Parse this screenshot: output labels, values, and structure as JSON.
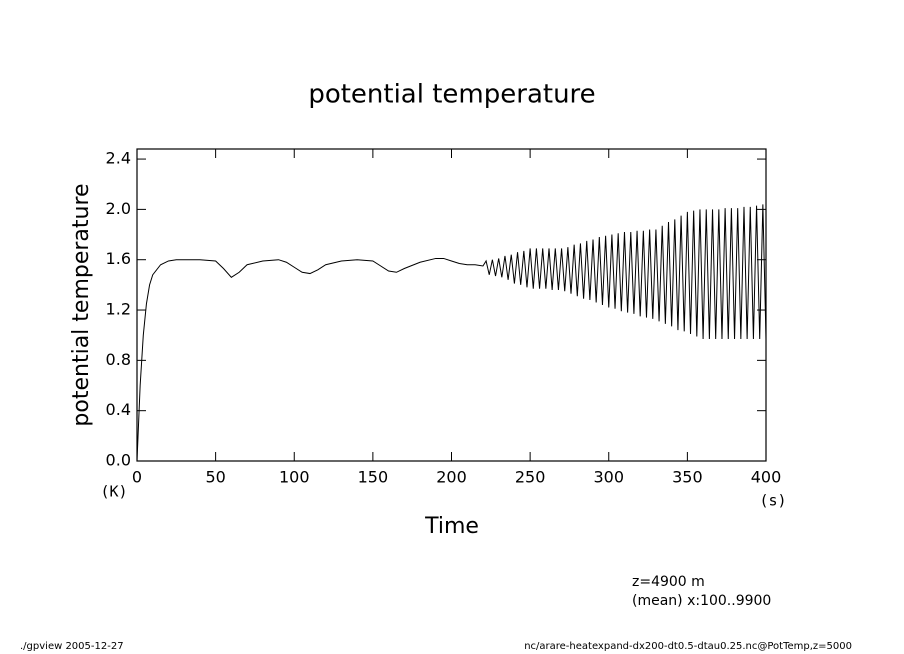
{
  "chart_data": {
    "type": "line",
    "title": "potential temperature",
    "y_label": "potential temperature",
    "x_label": "Time",
    "y_unit": "(K)",
    "x_unit": "(s)",
    "annotations": [
      "z=4900  m",
      "(mean) x:100..9900"
    ],
    "footer_left": "./gpview  2005-12-27",
    "footer_right": "nc/arare-heatexpand-dx200-dt0.5-dtau0.25.nc@PotTemp,z=5000",
    "color": "#000000",
    "xlim": [
      0,
      400
    ],
    "xticks": [
      0,
      50,
      100,
      150,
      200,
      250,
      300,
      350,
      400
    ],
    "ylim": [
      0,
      2.48
    ],
    "yticks": [
      {
        "value": 0,
        "label": "0.0"
      },
      0.4,
      0.8,
      1.2,
      1.6,
      {
        "value": 2,
        "label": "2.0"
      },
      2.4
    ],
    "x": [
      0,
      2,
      4,
      6,
      8,
      10,
      15,
      20,
      25,
      30,
      40,
      50,
      55,
      60,
      65,
      70,
      80,
      90,
      95,
      100,
      105,
      110,
      115,
      120,
      130,
      140,
      150,
      155,
      160,
      165,
      170,
      180,
      190,
      195,
      200,
      205,
      210,
      215,
      220,
      222,
      224,
      226,
      228,
      230,
      232,
      234,
      236,
      238,
      240,
      242,
      244,
      246,
      248,
      250,
      252,
      254,
      256,
      258,
      260,
      262,
      264,
      266,
      268,
      270,
      272,
      274,
      276,
      278,
      280,
      282,
      284,
      286,
      288,
      290,
      292,
      294,
      296,
      298,
      300,
      302,
      304,
      306,
      308,
      310,
      312,
      314,
      316,
      318,
      320,
      322,
      324,
      326,
      328,
      330,
      332,
      334,
      336,
      338,
      340,
      342,
      344,
      346,
      348,
      350,
      352,
      354,
      356,
      358,
      360,
      362,
      364,
      366,
      368,
      370,
      372,
      374,
      376,
      378,
      380,
      382,
      384,
      386,
      388,
      390,
      392,
      394,
      396,
      398,
      400
    ],
    "values": [
      0,
      0.6,
      1.0,
      1.25,
      1.4,
      1.48,
      1.56,
      1.59,
      1.6,
      1.6,
      1.6,
      1.59,
      1.53,
      1.46,
      1.5,
      1.56,
      1.59,
      1.6,
      1.58,
      1.54,
      1.5,
      1.49,
      1.52,
      1.56,
      1.59,
      1.6,
      1.59,
      1.55,
      1.51,
      1.5,
      1.53,
      1.58,
      1.61,
      1.61,
      1.59,
      1.57,
      1.56,
      1.56,
      1.55,
      1.59,
      1.48,
      1.6,
      1.47,
      1.61,
      1.46,
      1.63,
      1.44,
      1.64,
      1.41,
      1.66,
      1.4,
      1.67,
      1.38,
      1.69,
      1.37,
      1.69,
      1.37,
      1.69,
      1.37,
      1.69,
      1.36,
      1.69,
      1.36,
      1.69,
      1.35,
      1.7,
      1.33,
      1.72,
      1.31,
      1.73,
      1.29,
      1.75,
      1.28,
      1.76,
      1.26,
      1.78,
      1.24,
      1.79,
      1.22,
      1.8,
      1.21,
      1.81,
      1.19,
      1.82,
      1.18,
      1.82,
      1.17,
      1.83,
      1.15,
      1.83,
      1.14,
      1.84,
      1.13,
      1.84,
      1.11,
      1.87,
      1.09,
      1.9,
      1.07,
      1.92,
      1.04,
      1.95,
      1.03,
      1.98,
      1.01,
      1.99,
      0.99,
      2.0,
      0.97,
      2.0,
      0.97,
      2.0,
      0.97,
      2.0,
      0.97,
      2.01,
      0.97,
      2.01,
      0.97,
      2.01,
      0.97,
      2.02,
      0.97,
      2.02,
      0.97,
      2.03,
      0.97,
      2.04,
      0.97
    ]
  }
}
